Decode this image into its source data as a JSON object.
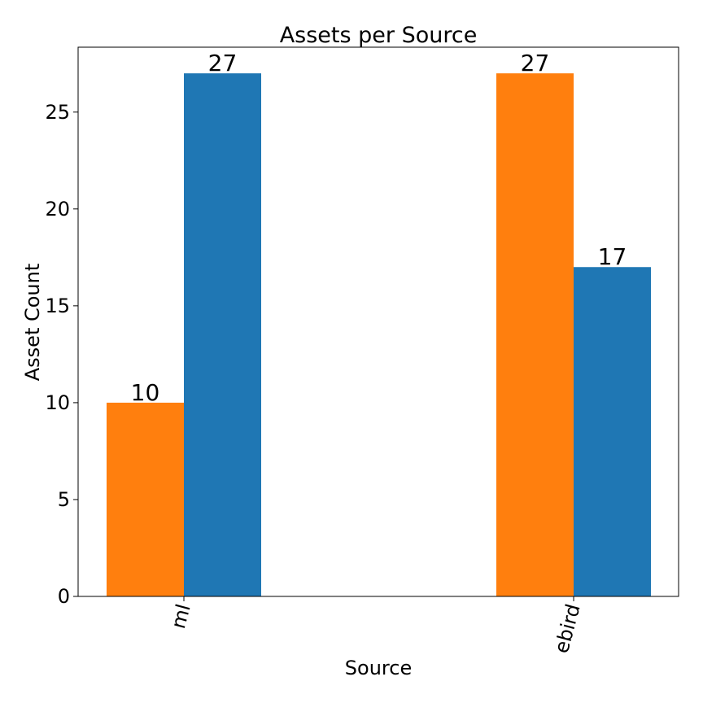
{
  "chart_data": {
    "type": "bar",
    "title": "Assets per Source",
    "xlabel": "Source",
    "ylabel": "Asset Count",
    "categories": [
      "ml",
      "ebird"
    ],
    "series": [
      {
        "color": "#ff7f0e",
        "values": [
          10,
          27
        ]
      },
      {
        "color": "#1f77b4",
        "values": [
          27,
          17
        ]
      }
    ],
    "ylim": [
      0,
      28.35
    ],
    "yticks": [
      0,
      5,
      10,
      15,
      20,
      25
    ],
    "grid": false,
    "legend": "none",
    "xtick_rotation": 75
  }
}
